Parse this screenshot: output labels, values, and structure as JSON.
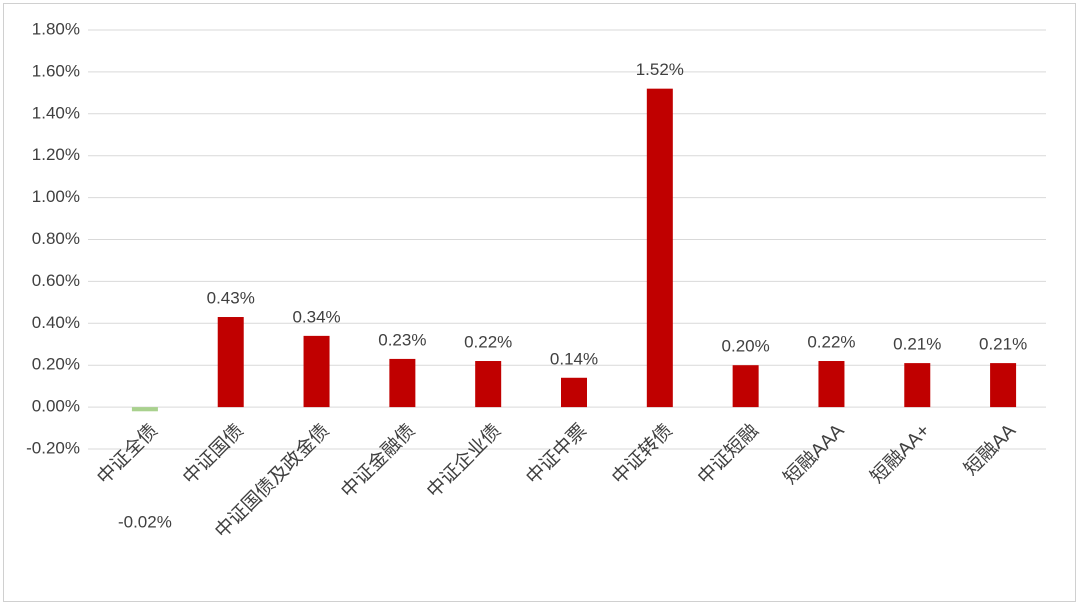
{
  "chart_data": {
    "type": "bar",
    "categories": [
      "中证全债",
      "中证国债",
      "中证国债及政金债",
      "中证金融债",
      "中证企业债",
      "中证中票",
      "中证转债",
      "中证短融",
      "短融AAA",
      "短融AA+",
      "短融AA"
    ],
    "values": [
      -0.02,
      0.43,
      0.34,
      0.23,
      0.22,
      0.14,
      1.52,
      0.2,
      0.22,
      0.21,
      0.21
    ],
    "value_labels": [
      "-0.02%",
      "0.43%",
      "0.34%",
      "0.23%",
      "0.22%",
      "0.14%",
      "1.52%",
      "0.20%",
      "0.22%",
      "0.21%",
      "0.21%"
    ],
    "colors": [
      "#a9d18e",
      "#c00000",
      "#c00000",
      "#c00000",
      "#c00000",
      "#c00000",
      "#c00000",
      "#c00000",
      "#c00000",
      "#c00000",
      "#c00000"
    ],
    "ylim": [
      -0.2,
      1.8
    ],
    "yticks": [
      {
        "value": -0.2,
        "label": "-0.20%"
      },
      {
        "value": 0,
        "label": "0.00%"
      },
      {
        "value": 0.2,
        "label": "0.20%"
      },
      {
        "value": 0.4,
        "label": "0.40%"
      },
      {
        "value": 0.6,
        "label": "0.60%"
      },
      {
        "value": 0.8,
        "label": "0.80%"
      },
      {
        "value": 1.0,
        "label": "1.00%"
      },
      {
        "value": 1.2,
        "label": "1.20%"
      },
      {
        "value": 1.4,
        "label": "1.40%"
      },
      {
        "value": 1.6,
        "label": "1.60%"
      },
      {
        "value": 1.8,
        "label": "1.80%"
      }
    ],
    "grid": true
  }
}
